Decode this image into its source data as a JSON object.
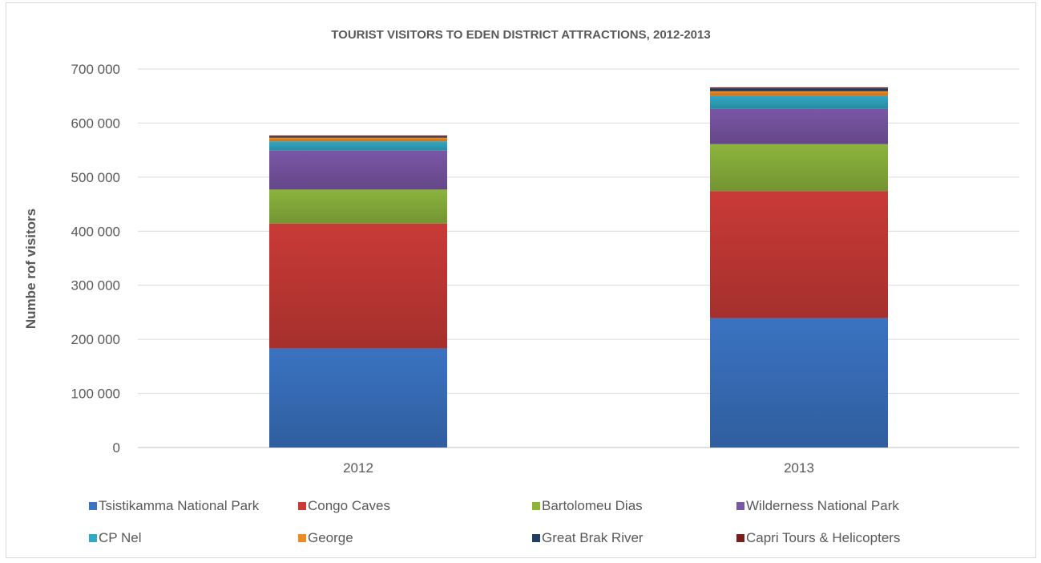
{
  "chart_data": {
    "type": "bar",
    "stacked": true,
    "title": "TOURIST VISITORS TO EDEN DISTRICT ATTRACTIONS, 2012-2013",
    "xlabel": "",
    "ylabel": "Numbe rof visitors",
    "categories": [
      "2012",
      "2013"
    ],
    "ylim": [
      0,
      700000
    ],
    "yticks": [
      0,
      100000,
      200000,
      300000,
      400000,
      500000,
      600000,
      700000
    ],
    "ytick_labels": [
      "0",
      "100 000",
      "200 000",
      "300 000",
      "400 000",
      "500 000",
      "600 000",
      "700 000"
    ],
    "grid": true,
    "legend_position": "bottom",
    "series": [
      {
        "name": "Tsistikamma National Park",
        "color": "#3a73c2",
        "values": [
          183000,
          239000
        ]
      },
      {
        "name": "Congo Caves",
        "color": "#c93a37",
        "values": [
          231000,
          235000
        ]
      },
      {
        "name": "Bartolomeu Dias",
        "color": "#8cb43d",
        "values": [
          63000,
          87000
        ]
      },
      {
        "name": "Wilderness National Park",
        "color": "#7a56a6",
        "values": [
          72000,
          65000
        ]
      },
      {
        "name": "CP Nel",
        "color": "#31a8c4",
        "values": [
          17000,
          24000
        ]
      },
      {
        "name": "George",
        "color": "#f08a24",
        "values": [
          7000,
          9000
        ]
      },
      {
        "name": "Great Brak River",
        "color": "#1f3f66",
        "values": [
          2000,
          5000
        ]
      },
      {
        "name": "Capri Tours & Helicopters",
        "color": "#7b1e1b",
        "values": [
          2000,
          2000
        ]
      }
    ]
  }
}
